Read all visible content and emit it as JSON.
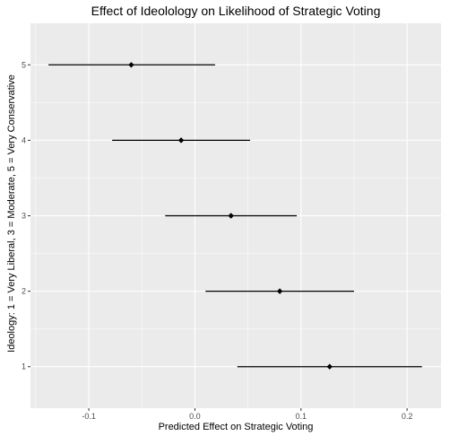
{
  "chart_data": {
    "type": "scatter",
    "title": "Effect of Ideolology  on Likelihood of Strategic Voting",
    "xlabel": "Predicted Effect on Strategic Voting",
    "ylabel": "Ideology: 1 = Very Liberal, 3 = Moderate, 5 = Very Conservative",
    "xlim": [
      -0.155,
      0.232
    ],
    "ylim": [
      0.45,
      5.55
    ],
    "x_ticks": [
      -0.1,
      0.0,
      0.1,
      0.2
    ],
    "x_tick_labels": [
      "-0.1",
      "0.0",
      "0.1",
      "0.2"
    ],
    "y_ticks": [
      1,
      2,
      3,
      4,
      5
    ],
    "y_tick_labels": [
      "1",
      "2",
      "3",
      "4",
      "5"
    ],
    "grid": true,
    "points": [
      {
        "y": 1,
        "estimate": 0.127,
        "lower": 0.04,
        "upper": 0.214
      },
      {
        "y": 2,
        "estimate": 0.08,
        "lower": 0.01,
        "upper": 0.15
      },
      {
        "y": 3,
        "estimate": 0.034,
        "lower": -0.028,
        "upper": 0.096
      },
      {
        "y": 4,
        "estimate": -0.013,
        "lower": -0.078,
        "upper": 0.052
      },
      {
        "y": 5,
        "estimate": -0.06,
        "lower": -0.138,
        "upper": 0.019
      }
    ],
    "colors": {
      "panel_background": "#ebebeb",
      "grid_major": "#ffffff",
      "marks": "#000000",
      "tick_text": "#4d4d4d"
    }
  }
}
